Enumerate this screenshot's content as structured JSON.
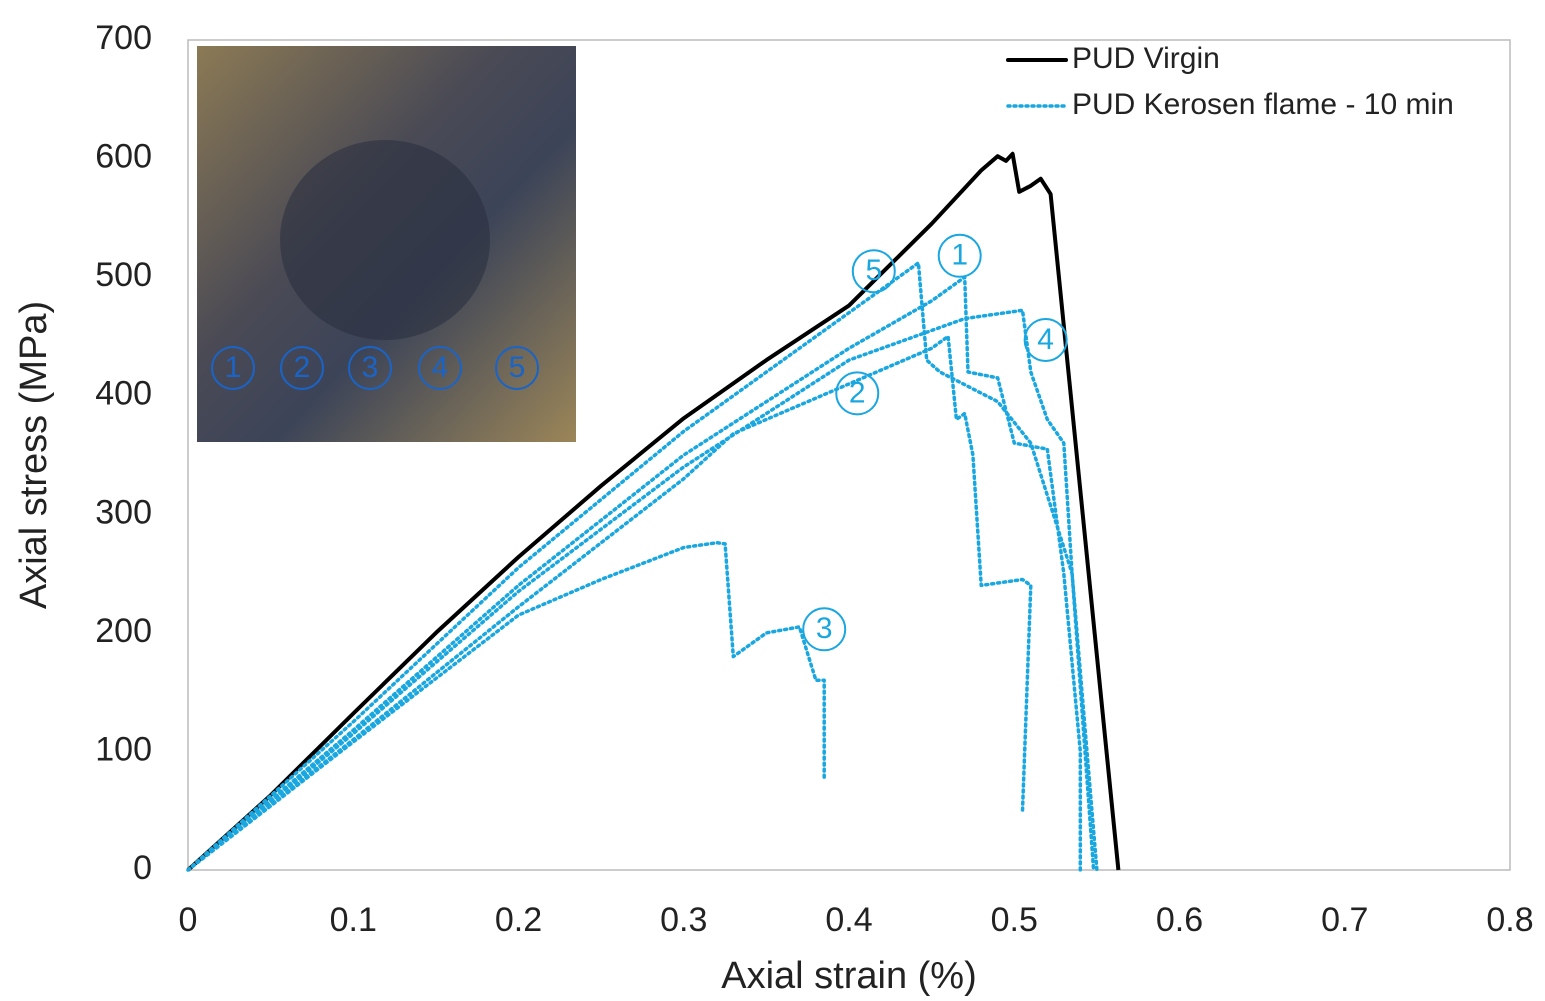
{
  "chart_data": {
    "type": "line",
    "x_label": "Axial strain (%)",
    "y_label": "Axial stress (MPa)",
    "xlim": [
      0,
      0.8
    ],
    "ylim": [
      0,
      700
    ],
    "xticks": [
      0,
      0.1,
      0.2,
      0.3,
      0.4,
      0.5,
      0.6,
      0.7,
      0.8
    ],
    "yticks": [
      0,
      100,
      200,
      300,
      400,
      500,
      600,
      700
    ],
    "grid": false,
    "legend": "upper right",
    "series": [
      {
        "name": "PUD Virgin",
        "color": "#000000",
        "style": "solid",
        "x": [
          0,
          0.05,
          0.1,
          0.15,
          0.2,
          0.25,
          0.3,
          0.35,
          0.4,
          0.45,
          0.48,
          0.49,
          0.495,
          0.499,
          0.503,
          0.51,
          0.516,
          0.522,
          0.563
        ],
        "values": [
          0,
          63,
          132,
          200,
          264,
          324,
          381,
          430,
          476,
          545,
          590,
          602,
          598,
          604,
          572,
          577,
          583,
          570,
          0
        ]
      },
      {
        "name": "PUD Kerosen flame - 10 min",
        "color": "#1aa7e0",
        "style": "dotted",
        "x": [
          0,
          0.1,
          0.2,
          0.3,
          0.4,
          0.442,
          0.447,
          0.455,
          0.49,
          0.51,
          0.535,
          0.548,
          null,
          0,
          0.1,
          0.2,
          0.3,
          0.4,
          0.45,
          0.47,
          0.472,
          0.49,
          0.5,
          0.52,
          0.53,
          0.54,
          0.54,
          null,
          0,
          0.1,
          0.2,
          0.3,
          0.4,
          0.47,
          0.505,
          0.51,
          0.52,
          0.53,
          0.535,
          0.55,
          null,
          0,
          0.1,
          0.2,
          0.3,
          0.33,
          0.35,
          0.4,
          0.45,
          0.46,
          0.465,
          0.47,
          0.475,
          0.48,
          0.505,
          0.51,
          0.505,
          null,
          0,
          0.1,
          0.2,
          0.25,
          0.3,
          0.32,
          0.325,
          0.33,
          0.35,
          0.37,
          0.38,
          0.385,
          0.385
        ],
        "values": [
          0,
          125,
          255,
          370,
          470,
          512,
          430,
          420,
          395,
          360,
          250,
          0,
          null,
          0,
          118,
          240,
          350,
          440,
          480,
          500,
          420,
          415,
          360,
          355,
          250,
          100,
          0,
          null,
          0,
          115,
          235,
          340,
          430,
          465,
          472,
          420,
          380,
          360,
          250,
          0,
          null,
          0,
          110,
          222,
          330,
          368,
          380,
          410,
          440,
          450,
          380,
          385,
          350,
          240,
          245,
          240,
          50,
          null,
          0,
          108,
          215,
          245,
          272,
          276,
          275,
          180,
          200,
          205,
          160,
          160,
          75
        ]
      }
    ],
    "annotations": [
      {
        "text": "5",
        "x": 0.415,
        "y": 505
      },
      {
        "text": "1",
        "x": 0.467,
        "y": 518
      },
      {
        "text": "4",
        "x": 0.519,
        "y": 447
      },
      {
        "text": "2",
        "x": 0.405,
        "y": 402
      },
      {
        "text": "3",
        "x": 0.385,
        "y": 203
      }
    ],
    "inset_labels": [
      "1",
      "2",
      "3",
      "4",
      "5"
    ]
  }
}
